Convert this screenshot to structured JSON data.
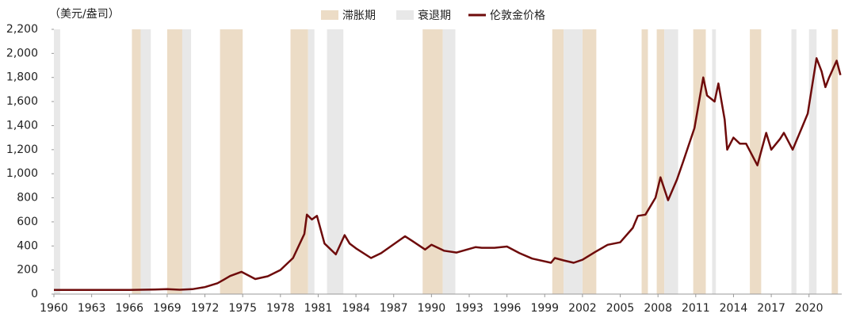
{
  "chart_data": {
    "type": "line",
    "y_unit_label": "（美元/盎司）",
    "xlim": [
      1960,
      2022.6
    ],
    "xticks": [
      1960,
      1963,
      1966,
      1969,
      1972,
      1975,
      1978,
      1981,
      1984,
      1987,
      1990,
      1993,
      1996,
      1999,
      2002,
      2005,
      2008,
      2011,
      2014,
      2017,
      2020
    ],
    "ylim": [
      0,
      2200
    ],
    "yticks": [
      0,
      200,
      400,
      600,
      800,
      {
        "value": 1000,
        "label": "1,000"
      },
      {
        "value": 1200,
        "label": "1,200"
      },
      {
        "value": 1400,
        "label": "1,400"
      },
      {
        "value": 1600,
        "label": "1,600"
      },
      {
        "value": 1800,
        "label": "1,800"
      },
      {
        "value": 2000,
        "label": "2,000"
      },
      {
        "value": 2200,
        "label": "2,200"
      }
    ],
    "periods": [
      {
        "name": "滞胀期",
        "color": "#ecdcc6",
        "ranges": [
          [
            1966.2,
            1966.9
          ],
          [
            1969.0,
            1970.2
          ],
          [
            1973.2,
            1975.0
          ],
          [
            1978.8,
            1980.2
          ],
          [
            1989.3,
            1990.9
          ],
          [
            1999.6,
            2000.5
          ],
          [
            2002.0,
            2003.1
          ],
          [
            2006.7,
            2007.2
          ],
          [
            2007.9,
            2008.5
          ],
          [
            2010.8,
            2011.8
          ],
          [
            2015.3,
            2016.2
          ],
          [
            2021.8,
            2022.3
          ]
        ]
      },
      {
        "name": "衰退期",
        "color": "#e8e8e8",
        "ranges": [
          [
            1960.0,
            1960.5
          ],
          [
            1966.9,
            1967.7
          ],
          [
            1970.2,
            1970.9
          ],
          [
            1980.2,
            1980.7
          ],
          [
            1981.7,
            1983.0
          ],
          [
            1990.9,
            1991.9
          ],
          [
            2000.5,
            2002.0
          ],
          [
            2008.5,
            2009.6
          ],
          [
            2012.3,
            2012.6
          ],
          [
            2018.6,
            2019.0
          ],
          [
            2020.0,
            2020.6
          ]
        ]
      }
    ],
    "x": [
      1960,
      1962,
      1964,
      1966,
      1968,
      1969,
      1970,
      1971,
      1972,
      1973,
      1973.5,
      1974,
      1974.9,
      1976,
      1977,
      1978,
      1979,
      1979.9,
      1980.1,
      1980.5,
      1980.9,
      1981.5,
      1982.4,
      1983.1,
      1983.5,
      1984,
      1985.2,
      1986,
      1987.9,
      1988.5,
      1989.5,
      1990,
      1991,
      1992,
      1993.5,
      1994,
      1995,
      1996,
      1997,
      1998,
      1999.5,
      1999.8,
      2000.5,
      2001.3,
      2002,
      2003,
      2004,
      2005,
      2006,
      2006.4,
      2007,
      2007.8,
      2008.2,
      2008.8,
      2009.5,
      2010,
      2010.9,
      2011.6,
      2011.9,
      2012.5,
      2012.8,
      2013.3,
      2013.5,
      2014,
      2014.5,
      2015,
      2015.9,
      2016.6,
      2017,
      2017.7,
      2018,
      2018.7,
      2019.5,
      2019.9,
      2020.6,
      2021,
      2021.3,
      2021.6,
      2022.2,
      2022.5
    ],
    "series": [
      {
        "name": "伦敦金价格",
        "color": "#6e0b0b",
        "values": [
          35,
          35,
          35,
          35,
          38,
          41,
          36,
          41,
          58,
          90,
          120,
          150,
          185,
          125,
          148,
          200,
          300,
          500,
          660,
          620,
          650,
          420,
          330,
          490,
          420,
          380,
          300,
          340,
          480,
          440,
          370,
          410,
          360,
          345,
          390,
          385,
          385,
          395,
          340,
          295,
          260,
          300,
          280,
          260,
          285,
          350,
          410,
          430,
          550,
          650,
          660,
          800,
          970,
          780,
          950,
          1100,
          1380,
          1800,
          1650,
          1600,
          1750,
          1450,
          1200,
          1300,
          1250,
          1250,
          1070,
          1340,
          1200,
          1290,
          1340,
          1200,
          1400,
          1500,
          1960,
          1850,
          1720,
          1800,
          1940,
          1820
        ]
      }
    ]
  }
}
